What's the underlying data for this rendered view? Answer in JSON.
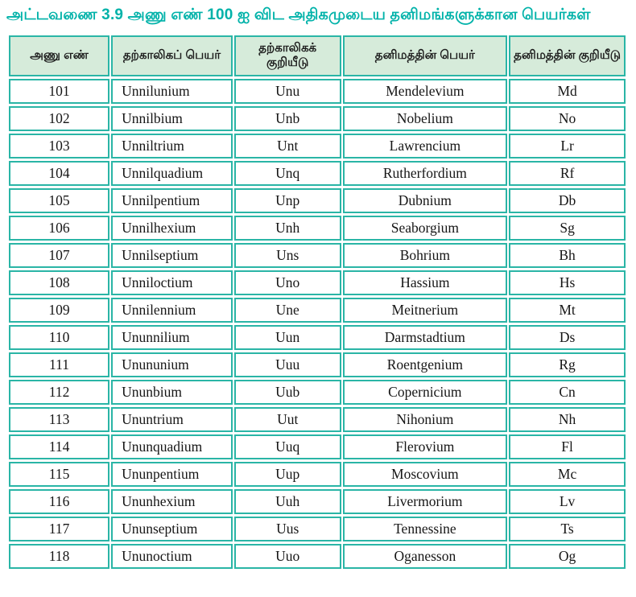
{
  "title": "அட்டவணை 3.9 அணு எண் 100 ஐ விட அதிகமுடைய தனிமங்களுக்கான பெயர்கள்",
  "table": {
    "headers": [
      "அணு எண்",
      "தற்காலிகப் பெயர்",
      "தற்காலிகக் குறியீடு",
      "தனிமத்தின் பெயர்",
      "தனிமத்தின் குறியீடு"
    ],
    "rows": [
      [
        "101",
        "Unnilunium",
        "Unu",
        "Mendelevium",
        "Md"
      ],
      [
        "102",
        "Unnilbium",
        "Unb",
        "Nobelium",
        "No"
      ],
      [
        "103",
        "Unniltrium",
        "Unt",
        "Lawrencium",
        "Lr"
      ],
      [
        "104",
        "Unnilquadium",
        "Unq",
        "Rutherfordium",
        "Rf"
      ],
      [
        "105",
        "Unnilpentium",
        "Unp",
        "Dubnium",
        "Db"
      ],
      [
        "106",
        "Unnilhexium",
        "Unh",
        "Seaborgium",
        "Sg"
      ],
      [
        "107",
        "Unnilseptium",
        "Uns",
        "Bohrium",
        "Bh"
      ],
      [
        "108",
        "Unniloctium",
        "Uno",
        "Hassium",
        "Hs"
      ],
      [
        "109",
        "Unnilennium",
        "Une",
        "Meitnerium",
        "Mt"
      ],
      [
        "110",
        "Ununnilium",
        "Uun",
        "Darmstadtium",
        "Ds"
      ],
      [
        "111",
        "Unununium",
        "Uuu",
        "Roentgenium",
        "Rg"
      ],
      [
        "112",
        "Ununbium",
        "Uub",
        "Copernicium",
        "Cn"
      ],
      [
        "113",
        "Ununtrium",
        "Uut",
        "Nihonium",
        "Nh"
      ],
      [
        "114",
        "Ununquadium",
        "Uuq",
        "Flerovium",
        "Fl"
      ],
      [
        "115",
        "Ununpentium",
        "Uup",
        "Moscovium",
        "Mc"
      ],
      [
        "116",
        "Ununhexium",
        "Uuh",
        "Livermorium",
        "Lv"
      ],
      [
        "117",
        "Ununseptium",
        "Uus",
        "Tennessine",
        "Ts"
      ],
      [
        "118",
        "Ununoctium",
        "Uuo",
        "Oganesson",
        "Og"
      ]
    ]
  },
  "colors": {
    "accent_teal": "#2ab5a6",
    "title_teal": "#00b2a9",
    "header_bg": "#d6ebda",
    "text_dark": "#161616"
  }
}
